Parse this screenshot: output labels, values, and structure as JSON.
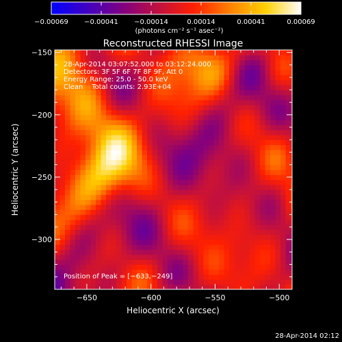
{
  "colorbar": {
    "ticks": [
      "−0.00069",
      "−0.00041",
      "−0.00014",
      "0.00014",
      "0.00041",
      "0.00069"
    ],
    "unit_label": "(photons cm⁻² s⁻¹ asec⁻²)",
    "colormap": [
      "#0000ff",
      "#4000c0",
      "#800080",
      "#c01040",
      "#ff2000",
      "#ff8000",
      "#ffd000",
      "#ffffff"
    ]
  },
  "chart_data": {
    "type": "heatmap",
    "title": "Reconstructed RHESSI Image",
    "xlabel": "Heliocentric X (arcsec)",
    "ylabel": "Heliocentric Y (arcsec)",
    "xlim": [
      -675,
      -490
    ],
    "ylim": [
      -340,
      -148
    ],
    "xticks": [
      -650,
      -600,
      -550,
      -500
    ],
    "yticks": [
      -150,
      -200,
      -250,
      -300
    ],
    "xtick_labels": [
      "−650",
      "−600",
      "−550",
      "−500"
    ],
    "ytick_labels": [
      "−150",
      "−200",
      "−250",
      "−300"
    ],
    "peak": [
      -633,
      -249
    ],
    "info": [
      "28-Apr-2014 03:07:52.000 to 03:12:24.000",
      "Detectors: 3F 5F 6F 7F 8F 9F, Att 0",
      "Energy Range: 25.0 - 50.0 keV",
      "Clean    Total counts: 2.93E+04"
    ],
    "peak_label": "Position of Peak = [−633,−249]"
  },
  "footer": {
    "timestamp": "28-Apr-2014 02:12"
  }
}
